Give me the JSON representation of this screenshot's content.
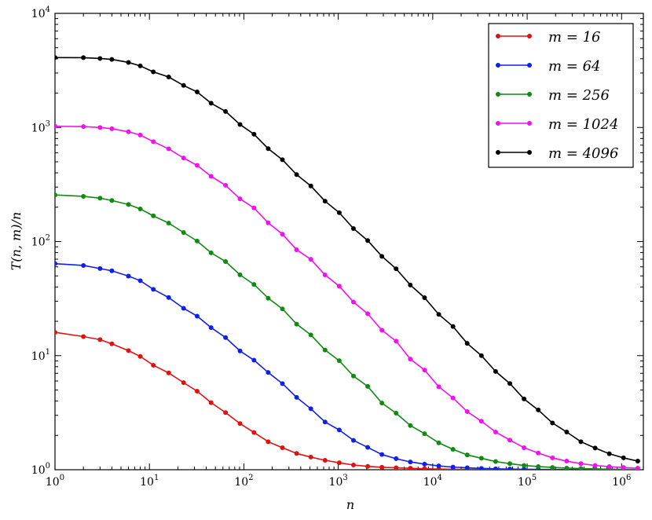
{
  "chart_data": {
    "type": "line",
    "title": "",
    "xlabel": "n",
    "ylabel": "T(n, m)/n",
    "xscale": "log",
    "yscale": "log",
    "xlim": [
      1,
      1700000
    ],
    "ylim": [
      1,
      10000
    ],
    "x_ticks": [
      {
        "base": "10",
        "exp": "0"
      },
      {
        "base": "10",
        "exp": "1"
      },
      {
        "base": "10",
        "exp": "2"
      },
      {
        "base": "10",
        "exp": "3"
      },
      {
        "base": "10",
        "exp": "4"
      },
      {
        "base": "10",
        "exp": "5"
      },
      {
        "base": "10",
        "exp": "6"
      }
    ],
    "y_ticks": [
      {
        "base": "10",
        "exp": "0"
      },
      {
        "base": "10",
        "exp": "1"
      },
      {
        "base": "10",
        "exp": "2"
      },
      {
        "base": "10",
        "exp": "3"
      },
      {
        "base": "10",
        "exp": "4"
      }
    ],
    "grid": false,
    "legend_position": "top-right",
    "x": [
      1,
      2,
      3,
      4,
      6,
      8,
      11,
      16,
      23,
      32,
      45,
      64,
      91,
      128,
      181,
      256,
      362,
      512,
      724,
      1024,
      1448,
      2048,
      2896,
      4096,
      5793,
      8192,
      11585,
      16384,
      23170,
      32768,
      46341,
      65536,
      92682,
      131072,
      185364,
      262144,
      370728,
      524288,
      741455,
      1048576,
      1482910
    ],
    "series": [
      {
        "name": "m = 16",
        "label_eq": "m = 16",
        "color": "#e41010",
        "values": [
          16,
          14.69,
          13.82,
          12.69,
          11.06,
          9.84,
          8.24,
          7.05,
          5.8,
          4.88,
          3.87,
          3.17,
          2.54,
          2.12,
          1.76,
          1.56,
          1.39,
          1.29,
          1.21,
          1.15,
          1.1,
          1.07,
          1.05,
          1.04,
          1.03,
          1.02,
          1.013,
          1.01,
          1.007,
          1.005,
          1.003,
          1.002,
          1.0017,
          1.0012,
          1.0008,
          1.0006,
          1.0004,
          1.0003,
          1.0002,
          1.0001,
          1.0001
        ]
      },
      {
        "name": "m = 64",
        "label_eq": "m = 64",
        "color": "#1020e8",
        "values": [
          64,
          61.7,
          58.0,
          55.4,
          49.8,
          45.4,
          38.1,
          32.3,
          26.0,
          22.2,
          17.6,
          14.4,
          11.0,
          9.12,
          7.12,
          5.69,
          4.31,
          3.42,
          2.62,
          2.23,
          1.81,
          1.57,
          1.36,
          1.25,
          1.17,
          1.12,
          1.08,
          1.055,
          1.04,
          1.027,
          1.019,
          1.014,
          1.01,
          1.007,
          1.005,
          1.0035,
          1.0024,
          1.0017,
          1.0012,
          1.0009,
          1.0006
        ]
      },
      {
        "name": "m = 256",
        "label_eq": "m = 256",
        "color": "#108a10",
        "values": [
          256,
          249,
          240,
          229,
          211,
          193,
          168,
          145,
          120,
          101,
          79.6,
          66.8,
          51.1,
          42.1,
          31.9,
          25.7,
          18.9,
          15.2,
          11.2,
          9.03,
          6.62,
          5.38,
          3.84,
          3.13,
          2.44,
          2.07,
          1.72,
          1.51,
          1.35,
          1.26,
          1.18,
          1.13,
          1.09,
          1.066,
          1.047,
          1.033,
          1.024,
          1.017,
          1.012,
          1.0085,
          1.006
        ]
      },
      {
        "name": "m = 1024",
        "label_eq": "m = 1024",
        "color": "#f010f0",
        "values": [
          1024,
          1017,
          999,
          975,
          916,
          858,
          751,
          649,
          540,
          465,
          373,
          311,
          237,
          197,
          146,
          116,
          84.7,
          69.8,
          51.0,
          40.6,
          29.5,
          23.3,
          16.7,
          13.4,
          9.33,
          7.48,
          5.34,
          4.26,
          3.23,
          2.66,
          2.14,
          1.82,
          1.56,
          1.4,
          1.27,
          1.19,
          1.13,
          1.09,
          1.065,
          1.046,
          1.032
        ]
      },
      {
        "name": "m = 4096",
        "label_eq": "m = 4096",
        "color": "#000000",
        "values": [
          4096,
          4089,
          4023,
          3951,
          3716,
          3464,
          3072,
          2768,
          2333,
          2048,
          1630,
          1382,
          1062,
          872,
          652,
          521,
          386,
          307,
          226,
          179,
          130,
          102,
          74.2,
          57.7,
          41.6,
          32.2,
          23.0,
          18.0,
          12.8,
          10.0,
          7.27,
          5.7,
          4.17,
          3.34,
          2.57,
          2.14,
          1.76,
          1.55,
          1.38,
          1.27,
          1.19
        ]
      }
    ]
  }
}
